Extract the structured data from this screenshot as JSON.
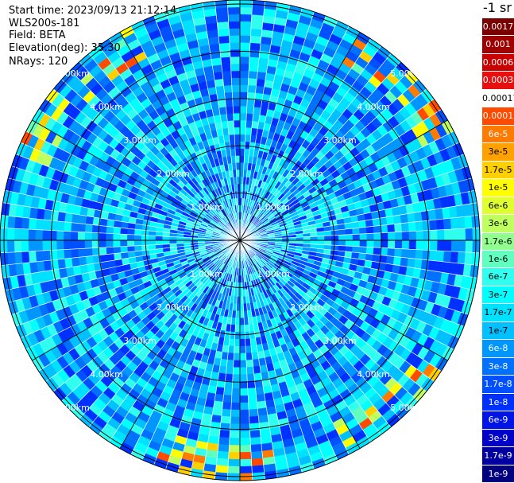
{
  "header": {
    "start_time": "Start time: 2023/09/13 21:12:14",
    "instrument": "WLS200s-181",
    "field": "Field: BETA",
    "elevation": "Elevation(deg): 35.30",
    "nrays": "NRays: 120"
  },
  "range_ring_labels": [
    "1.00km",
    "2.00km",
    "3.00km",
    "4.00km",
    "5.00km"
  ],
  "colorbar": {
    "title": "-1 sr",
    "labels": [
      "0.0017",
      "0.001",
      "0.0006",
      "0.0003",
      "0.00017",
      "0.0001",
      "6e-5",
      "3e-5",
      "1.7e-5",
      "1e-5",
      "6e-6",
      "3e-6",
      "1.7e-6",
      "1e-6",
      "6e-7",
      "3e-7",
      "1.7e-7",
      "1e-7",
      "6e-8",
      "3e-8",
      "1.7e-8",
      "1e-8",
      "6e-9",
      "3e-9",
      "1.7e-9",
      "1e-9"
    ],
    "colors": [
      "#7a0000",
      "#a00000",
      "#c80000",
      "#e61010",
      "#ffffff",
      "#ff4a00",
      "#ff7a00",
      "#ffa200",
      "#ffd000",
      "#ffff00",
      "#e0ff30",
      "#c0ff60",
      "#90ff90",
      "#60ffc0",
      "#30fff0",
      "#00ffff",
      "#00e0ff",
      "#00c0ff",
      "#0096ff",
      "#0070ff",
      "#0050ff",
      "#0030ff",
      "#0014e8",
      "#0000c8",
      "#0000a0",
      "#000080"
    ]
  }
}
